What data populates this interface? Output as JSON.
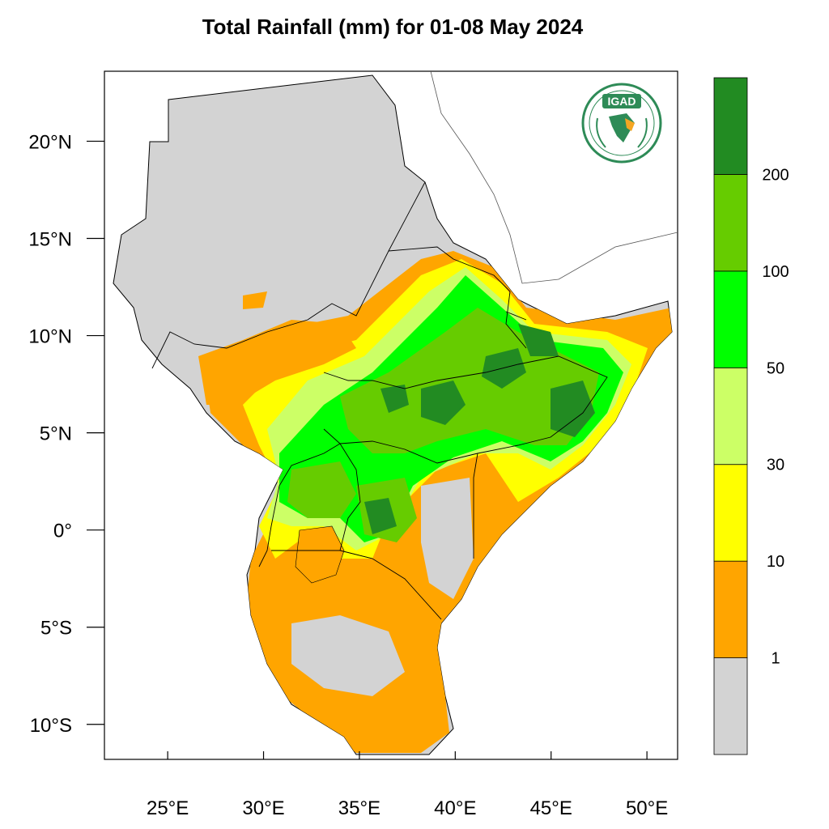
{
  "title": "Total Rainfall (mm) for 01-08 May 2024",
  "logo": {
    "text": "IGAD",
    "color": "#2e8b57",
    "accent": "#f5a623"
  },
  "map": {
    "x_ticks": [
      {
        "lon": 25,
        "label": "25°E"
      },
      {
        "lon": 30,
        "label": "30°E"
      },
      {
        "lon": 35,
        "label": "35°E"
      },
      {
        "lon": 40,
        "label": "40°E"
      },
      {
        "lon": 45,
        "label": "45°E"
      },
      {
        "lon": 50,
        "label": "50°E"
      }
    ],
    "y_ticks": [
      {
        "lat": 20,
        "label": "20°N"
      },
      {
        "lat": 15,
        "label": "15°N"
      },
      {
        "lat": 10,
        "label": "10°N"
      },
      {
        "lat": 5,
        "label": "5°N"
      },
      {
        "lat": 0,
        "label": "0°"
      },
      {
        "lat": -5,
        "label": "5°S"
      },
      {
        "lat": -10,
        "label": "10°S"
      }
    ],
    "lon_range": [
      21.7,
      51.6
    ],
    "lat_range": [
      -11.8,
      23.6
    ]
  },
  "legend": {
    "colors": [
      "#d3d3d3",
      "#ffa500",
      "#ffff00",
      "#ccff66",
      "#00ff00",
      "#66cc00",
      "#228b22"
    ],
    "labels": [
      "1",
      "10",
      "30",
      "50",
      "100",
      "200"
    ]
  }
}
